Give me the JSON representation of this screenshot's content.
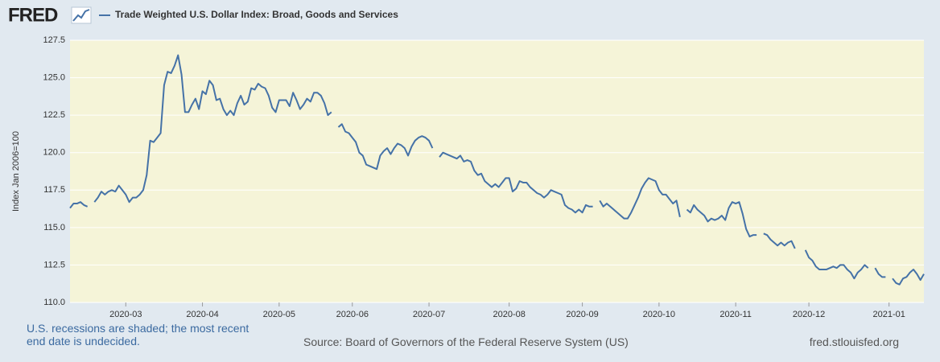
{
  "logo": "FRED",
  "chart_data": {
    "type": "line",
    "ylabel": "Index Jan 2006=100",
    "categories": [
      null,
      null,
      null,
      null,
      null,
      null,
      null,
      null,
      null,
      null,
      null,
      null,
      null,
      null,
      null,
      null,
      "2020-03",
      null,
      null,
      null,
      null,
      null,
      null,
      null,
      null,
      null,
      null,
      null,
      null,
      null,
      null,
      null,
      null,
      null,
      null,
      null,
      null,
      null,
      "2020-04",
      null,
      null,
      null,
      null,
      null,
      null,
      null,
      null,
      null,
      null,
      null,
      null,
      null,
      null,
      null,
      null,
      null,
      null,
      null,
      null,
      null,
      "2020-05",
      null,
      null,
      null,
      null,
      null,
      null,
      null,
      null,
      null,
      null,
      null,
      null,
      null,
      null,
      null,
      null,
      null,
      null,
      null,
      null,
      "2020-06",
      null,
      null,
      null,
      null,
      null,
      null,
      null,
      null,
      null,
      null,
      null,
      null,
      null,
      null,
      null,
      null,
      null,
      null,
      null,
      null,
      null,
      "2020-07",
      null,
      null,
      null,
      null,
      null,
      null,
      null,
      null,
      null,
      null,
      null,
      null,
      null,
      null,
      null,
      null,
      null,
      null,
      null,
      null,
      null,
      null,
      "2020-08",
      null,
      null,
      null,
      null,
      null,
      null,
      null,
      null,
      null,
      null,
      null,
      null,
      null,
      null,
      null,
      null,
      null,
      null,
      null,
      null,
      "2020-09",
      null,
      null,
      null,
      null,
      null,
      null,
      null,
      null,
      null,
      null,
      null,
      null,
      null,
      null,
      null,
      null,
      null,
      null,
      null,
      null,
      null,
      "2020-10",
      null,
      null,
      null,
      null,
      null,
      null,
      null,
      null,
      null,
      null,
      null,
      null,
      null,
      null,
      null,
      null,
      null,
      null,
      null,
      null,
      null,
      "2020-11",
      null,
      null,
      null,
      null,
      null,
      null,
      null,
      null,
      null,
      null,
      null,
      null,
      null,
      null,
      null,
      null,
      null,
      null,
      null,
      null,
      "2020-12",
      null,
      null,
      null,
      null,
      null,
      null,
      null,
      null,
      null,
      null,
      null,
      null,
      null,
      null,
      null,
      null,
      null,
      null,
      null,
      null,
      null,
      null,
      "2021-01",
      null,
      null,
      null,
      null,
      null,
      null,
      null,
      null,
      null,
      null
    ],
    "series": [
      {
        "name": "Trade Weighted U.S. Dollar Index: Broad, Goods and Services",
        "color": "#4572a7",
        "values": [
          116.3,
          116.6,
          116.6,
          116.7,
          116.5,
          116.4,
          null,
          116.7,
          117.0,
          117.4,
          117.2,
          117.4,
          117.5,
          117.4,
          117.8,
          117.5,
          117.2,
          116.7,
          117.0,
          117.0,
          117.2,
          117.5,
          118.5,
          120.8,
          120.7,
          121.0,
          121.3,
          124.5,
          125.4,
          125.3,
          125.8,
          126.5,
          125.2,
          122.7,
          122.7,
          123.2,
          123.6,
          122.9,
          124.1,
          123.9,
          124.8,
          124.5,
          123.5,
          123.6,
          122.9,
          122.5,
          122.8,
          122.5,
          123.3,
          123.8,
          123.2,
          123.4,
          124.3,
          124.2,
          124.6,
          124.4,
          124.3,
          123.8,
          123.0,
          122.7,
          123.5,
          123.5,
          123.5,
          123.1,
          124.0,
          123.5,
          122.9,
          123.2,
          123.6,
          123.4,
          124.0,
          124.0,
          123.8,
          123.3,
          122.5,
          122.7,
          null,
          121.7,
          121.9,
          121.4,
          121.3,
          121.0,
          120.7,
          120.0,
          119.8,
          119.2,
          119.1,
          119.0,
          118.9,
          119.8,
          120.1,
          120.3,
          119.9,
          120.3,
          120.6,
          120.5,
          120.3,
          119.8,
          120.4,
          120.8,
          121.0,
          121.1,
          121.0,
          120.8,
          120.3,
          null,
          119.7,
          120.0,
          119.9,
          119.8,
          119.7,
          119.6,
          119.8,
          119.4,
          119.5,
          119.4,
          118.8,
          118.5,
          118.6,
          118.1,
          117.9,
          117.7,
          117.9,
          117.7,
          118.0,
          118.3,
          118.3,
          117.4,
          117.6,
          118.1,
          118.0,
          118.0,
          117.7,
          117.5,
          117.3,
          117.2,
          117.0,
          117.2,
          117.5,
          117.4,
          117.3,
          117.2,
          116.5,
          116.3,
          116.2,
          116.0,
          116.2,
          116.0,
          116.5,
          116.4,
          116.4,
          null,
          116.8,
          116.4,
          116.6,
          116.4,
          116.2,
          116.0,
          115.8,
          115.6,
          115.6,
          116.0,
          116.5,
          117.0,
          117.6,
          118.0,
          118.3,
          118.2,
          118.1,
          117.5,
          117.2,
          117.2,
          116.9,
          116.6,
          116.8,
          115.7,
          null,
          116.2,
          116.0,
          116.5,
          116.2,
          116.0,
          115.8,
          115.4,
          115.6,
          115.5,
          115.6,
          115.8,
          115.5,
          116.3,
          116.7,
          116.6,
          116.7,
          115.9,
          114.9,
          114.4,
          114.5,
          114.5,
          null,
          114.6,
          114.5,
          114.2,
          114.0,
          113.8,
          114.0,
          113.8,
          114.0,
          114.1,
          113.6,
          null,
          null,
          113.5,
          113.0,
          112.8,
          112.4,
          112.2,
          112.2,
          112.2,
          112.3,
          112.4,
          112.3,
          112.5,
          112.5,
          112.2,
          112.0,
          111.6,
          112.0,
          112.2,
          112.5,
          112.3,
          null,
          112.3,
          111.9,
          111.7,
          111.7,
          null,
          111.6,
          111.3,
          111.2,
          111.6,
          111.7,
          112.0,
          112.2,
          111.9,
          111.5,
          111.9
        ]
      }
    ],
    "ylim": [
      110,
      127.5
    ],
    "yticks": [
      {
        "value": 110,
        "label": "110.0"
      },
      112.5,
      {
        "value": 115,
        "label": "115.0"
      },
      117.5,
      {
        "value": 120,
        "label": "120.0"
      },
      122.5,
      {
        "value": 125,
        "label": "125.0"
      },
      127.5
    ],
    "grid": true,
    "note": "U.S. recessions are shaded; the most recent end date is undecided.",
    "source": "Source: Board of Governors of the Federal Reserve System (US)",
    "site": "fred.stlouisfed.org"
  }
}
